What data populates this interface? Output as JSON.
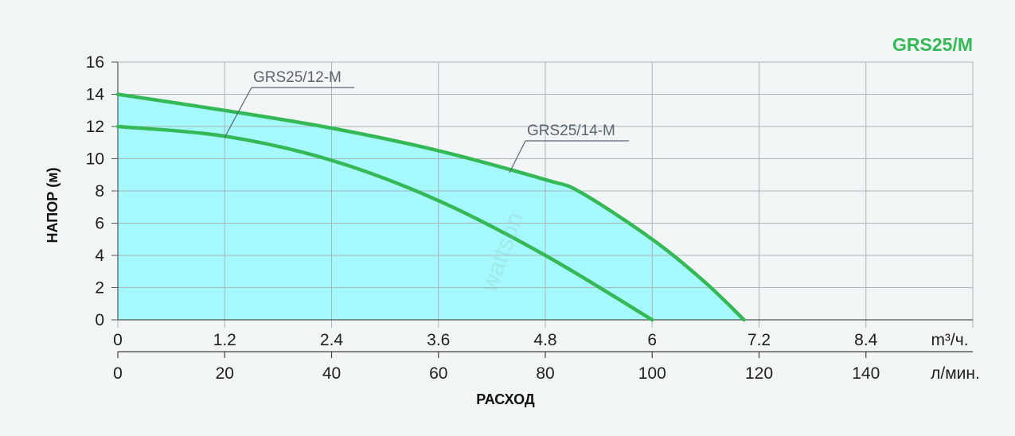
{
  "chart_data": {
    "type": "line",
    "title": "GRS25/M",
    "ylabel": "НАПОР (м)",
    "xlabel": "РАСХОД",
    "y_ticks": [
      "0",
      "2",
      "4",
      "6",
      "8",
      "10",
      "12",
      "14",
      "16"
    ],
    "ylim": [
      0,
      16
    ],
    "x_primary": {
      "unit": "m³/ч.",
      "ticks": [
        "0",
        "1.2",
        "2.4",
        "3.6",
        "4.8",
        "6",
        "7.2",
        "8.4"
      ],
      "xlim": [
        0,
        9.6
      ]
    },
    "x_secondary": {
      "unit": "л/мин.",
      "ticks": [
        "0",
        "20",
        "40",
        "60",
        "80",
        "100",
        "120",
        "140"
      ]
    },
    "grid": true,
    "area_fill": true,
    "series": [
      {
        "name": "GRS25/14-M",
        "x": [
          0,
          1.2,
          2.4,
          3.6,
          4.8,
          5.2,
          6.0,
          6.6,
          7.03
        ],
        "y": [
          14,
          13.0,
          11.9,
          10.5,
          8.7,
          7.9,
          5.0,
          2.3,
          0
        ]
      },
      {
        "name": "GRS25/12-M",
        "x": [
          0,
          1.2,
          2.4,
          3.6,
          4.8,
          6.0
        ],
        "y": [
          12,
          11.4,
          9.9,
          7.4,
          4.0,
          0
        ]
      }
    ],
    "watermark": "wattson",
    "colors": {
      "curve": "#35b957",
      "fill": "#a5f8fb",
      "grid": "#a9b6b9",
      "title": "#35b957"
    }
  }
}
